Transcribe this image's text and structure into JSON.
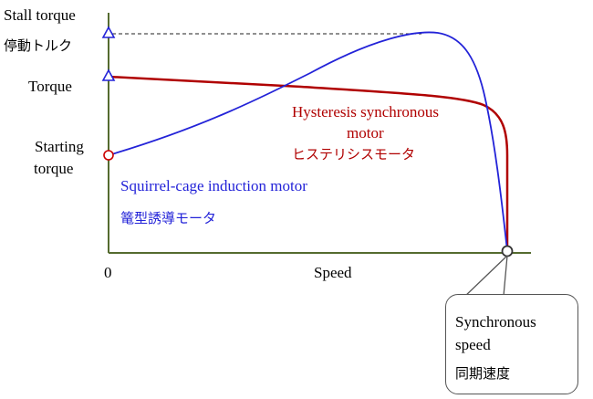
{
  "axes": {
    "y_labels": {
      "stall_torque": "Stall torque",
      "stall_torque_jp": "停動トルク",
      "torque": "Torque",
      "starting_torque_line1": "Starting",
      "starting_torque_line2": "torque"
    },
    "x_labels": {
      "origin": "0",
      "speed": "Speed"
    }
  },
  "curves": {
    "hysteresis": {
      "line1": "Hysteresis synchronous",
      "line2": "motor",
      "jp": "ヒステリシスモータ",
      "color": "#b00000"
    },
    "induction": {
      "line1": "Squirrel-cage induction motor",
      "jp": "篭型誘導モータ",
      "color": "#2323d8"
    }
  },
  "callout": {
    "line1": "Synchronous",
    "line2": "speed",
    "jp": "同期速度"
  },
  "colors": {
    "axis": "#556b2f",
    "marker_triangle": "#2323d8",
    "marker_circle": "#cc0000"
  }
}
